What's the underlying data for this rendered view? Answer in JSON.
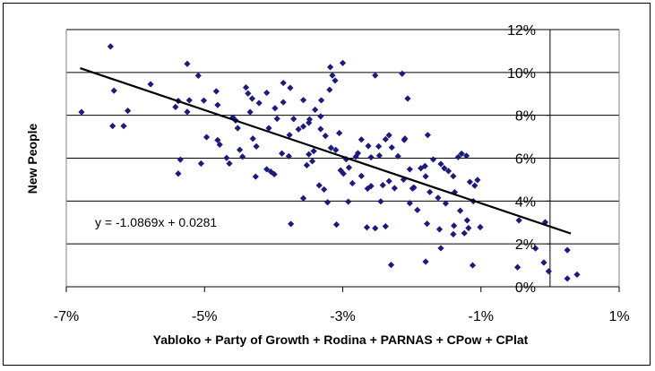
{
  "chart_data": {
    "type": "scatter",
    "title": "",
    "xlabel": "Yabloko + Party of Growth + Rodina + PARNAS + CPow + CPlat",
    "ylabel": "New People",
    "xlim": [
      -0.07,
      0.01
    ],
    "ylim": [
      0,
      0.12
    ],
    "xticks": [
      {
        "v": -0.07,
        "label": "-7%"
      },
      {
        "v": -0.05,
        "label": "-5%"
      },
      {
        "v": -0.03,
        "label": "-3%"
      },
      {
        "v": -0.01,
        "label": "-1%"
      },
      {
        "v": 0.01,
        "label": "1%"
      }
    ],
    "yticks": [
      {
        "v": 0.0,
        "label": "0%"
      },
      {
        "v": 0.02,
        "label": "2%"
      },
      {
        "v": 0.04,
        "label": "4%"
      },
      {
        "v": 0.06,
        "label": "6%"
      },
      {
        "v": 0.08,
        "label": "8%"
      },
      {
        "v": 0.1,
        "label": "10%"
      },
      {
        "v": 0.12,
        "label": "12%"
      }
    ],
    "grid": {
      "horizontal": true,
      "vertical": false
    },
    "marker_color": "#1a1a80",
    "trendline": {
      "slope": -1.0869,
      "intercept": 0.0281,
      "label": "y = -1.0869x + 0.0281",
      "x_from": -0.068,
      "x_to": 0.003
    },
    "points": [
      [
        -0.0636,
        0.1121
      ],
      [
        -0.0525,
        0.104
      ],
      [
        -0.0678,
        0.0815
      ],
      [
        -0.0578,
        0.0945
      ],
      [
        -0.0611,
        0.0821
      ],
      [
        -0.0631,
        0.0915
      ],
      [
        -0.0633,
        0.075
      ],
      [
        -0.0617,
        0.075
      ],
      [
        -0.0542,
        0.0839
      ],
      [
        -0.0538,
        0.0867
      ],
      [
        -0.0522,
        0.087
      ],
      [
        -0.0525,
        0.0816
      ],
      [
        -0.0501,
        0.0869
      ],
      [
        -0.0509,
        0.0985
      ],
      [
        -0.0483,
        0.0912
      ],
      [
        -0.0481,
        0.0848
      ],
      [
        -0.0459,
        0.079
      ],
      [
        -0.0455,
        0.0776
      ],
      [
        -0.0452,
        0.074
      ],
      [
        -0.044,
        0.093
      ],
      [
        -0.0437,
        0.0902
      ],
      [
        -0.0434,
        0.0815
      ],
      [
        -0.0431,
        0.0878
      ],
      [
        -0.0421,
        0.0857
      ],
      [
        -0.041,
        0.0905
      ],
      [
        -0.0398,
        0.0833
      ],
      [
        -0.0395,
        0.0784
      ],
      [
        -0.0386,
        0.0951
      ],
      [
        -0.0386,
        0.0861
      ],
      [
        -0.0376,
        0.0928
      ],
      [
        -0.0371,
        0.0783
      ],
      [
        -0.0357,
        0.0871
      ],
      [
        -0.0348,
        0.0781
      ],
      [
        -0.0349,
        0.0765
      ],
      [
        -0.034,
        0.0826
      ],
      [
        -0.0332,
        0.0795
      ],
      [
        -0.0331,
        0.087
      ],
      [
        -0.0319,
        0.0919
      ],
      [
        -0.0315,
        0.0986
      ],
      [
        -0.0311,
        0.0962
      ],
      [
        -0.0318,
        0.1025
      ],
      [
        -0.03,
        0.1044
      ],
      [
        -0.0253,
        0.0986
      ],
      [
        -0.0214,
        0.0994
      ],
      [
        -0.0206,
        0.0878
      ],
      [
        -0.0535,
        0.0593
      ],
      [
        -0.0538,
        0.0528
      ],
      [
        -0.0505,
        0.0575
      ],
      [
        -0.0497,
        0.0698
      ],
      [
        -0.0481,
        0.0684
      ],
      [
        -0.0478,
        0.0663
      ],
      [
        -0.0468,
        0.0601
      ],
      [
        -0.0464,
        0.0575
      ],
      [
        -0.0449,
        0.0639
      ],
      [
        -0.0445,
        0.0607
      ],
      [
        -0.043,
        0.0691
      ],
      [
        -0.0425,
        0.0655
      ],
      [
        -0.0426,
        0.0514
      ],
      [
        -0.0407,
        0.074
      ],
      [
        -0.041,
        0.0548
      ],
      [
        -0.0404,
        0.0537
      ],
      [
        -0.0399,
        0.0525
      ],
      [
        -0.0388,
        0.0622
      ],
      [
        -0.0378,
        0.0609
      ],
      [
        -0.0377,
        0.0708
      ],
      [
        -0.0364,
        0.0735
      ],
      [
        -0.0357,
        0.0748
      ],
      [
        -0.0352,
        0.0567
      ],
      [
        -0.0342,
        0.0633
      ],
      [
        -0.0332,
        0.0736
      ],
      [
        -0.0325,
        0.0704
      ],
      [
        -0.0317,
        0.0648
      ],
      [
        -0.031,
        0.0638
      ],
      [
        -0.0305,
        0.0717
      ],
      [
        -0.0299,
        0.0528
      ],
      [
        -0.0295,
        0.0595
      ],
      [
        -0.0291,
        0.0556
      ],
      [
        -0.0281,
        0.0607
      ],
      [
        -0.0278,
        0.0623
      ],
      [
        -0.0273,
        0.0687
      ],
      [
        -0.0263,
        0.0657
      ],
      [
        -0.0259,
        0.0604
      ],
      [
        -0.0248,
        0.0655
      ],
      [
        -0.0247,
        0.0612
      ],
      [
        -0.0238,
        0.0688
      ],
      [
        -0.0233,
        0.0707
      ],
      [
        -0.0229,
        0.065
      ],
      [
        -0.022,
        0.0609
      ],
      [
        -0.0211,
        0.0685
      ],
      [
        -0.021,
        0.0691
      ],
      [
        -0.0203,
        0.0548
      ],
      [
        -0.0197,
        0.0463
      ],
      [
        -0.0187,
        0.0553
      ],
      [
        -0.0181,
        0.0563
      ],
      [
        -0.018,
        0.0515
      ],
      [
        -0.0177,
        0.0708
      ],
      [
        -0.0169,
        0.0594
      ],
      [
        -0.0158,
        0.0573
      ],
      [
        -0.0153,
        0.0553
      ],
      [
        -0.0147,
        0.054
      ],
      [
        -0.014,
        0.0516
      ],
      [
        -0.0133,
        0.0605
      ],
      [
        -0.0128,
        0.0621
      ],
      [
        -0.0121,
        0.0611
      ],
      [
        -0.0116,
        0.0489
      ],
      [
        -0.0109,
        0.0472
      ],
      [
        -0.0105,
        0.0498
      ],
      [
        -0.0349,
        0.0618
      ],
      [
        -0.0344,
        0.0586
      ],
      [
        -0.0334,
        0.0473
      ],
      [
        -0.0327,
        0.0454
      ],
      [
        -0.0322,
        0.0394
      ],
      [
        -0.0303,
        0.0543
      ],
      [
        -0.0286,
        0.0483
      ],
      [
        -0.0273,
        0.0517
      ],
      [
        -0.0264,
        0.0458
      ],
      [
        -0.0259,
        0.047
      ],
      [
        -0.0242,
        0.0474
      ],
      [
        -0.0233,
        0.0493
      ],
      [
        -0.0225,
        0.046
      ],
      [
        -0.0212,
        0.05
      ],
      [
        -0.0199,
        0.0459
      ],
      [
        -0.0192,
        0.0358
      ],
      [
        -0.0174,
        0.0442
      ],
      [
        -0.0162,
        0.0415
      ],
      [
        -0.0151,
        0.0389
      ],
      [
        -0.0138,
        0.0441
      ],
      [
        -0.013,
        0.0355
      ],
      [
        -0.012,
        0.031
      ],
      [
        -0.0118,
        0.0274
      ],
      [
        -0.0111,
        0.0399
      ],
      [
        -0.0101,
        0.0278
      ],
      [
        -0.0375,
        0.0293
      ],
      [
        -0.0309,
        0.029
      ],
      [
        -0.0265,
        0.0277
      ],
      [
        -0.0253,
        0.0273
      ],
      [
        -0.0238,
        0.0282
      ],
      [
        -0.0178,
        0.0294
      ],
      [
        -0.016,
        0.0268
      ],
      [
        -0.014,
        0.0245
      ],
      [
        -0.0124,
        0.025
      ],
      [
        -0.023,
        0.0102
      ],
      [
        -0.018,
        0.0117
      ],
      [
        -0.0112,
        0.01
      ],
      [
        -0.0047,
        0.0091
      ],
      [
        -0.0045,
        0.031
      ],
      [
        -0.0021,
        0.0179
      ],
      [
        -0.0009,
        0.0113
      ],
      [
        -0.0002,
        0.0072
      ],
      [
        -0.0007,
        0.0301
      ],
      [
        0.0025,
        0.0171
      ],
      [
        0.0025,
        0.0038
      ],
      [
        0.0039,
        0.0057
      ],
      [
        -0.0158,
        0.018
      ],
      [
        -0.0139,
        0.0285
      ],
      [
        -0.0245,
        0.0398
      ],
      [
        -0.0357,
        0.0413
      ],
      [
        -0.0292,
        0.0397
      ],
      [
        -0.0203,
        0.039
      ]
    ]
  }
}
